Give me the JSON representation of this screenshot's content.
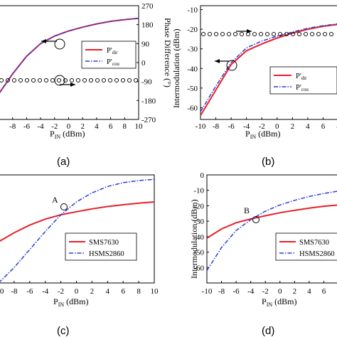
{
  "captions": [
    "(a)",
    "(b)",
    "(c)",
    "(d)"
  ],
  "chart_data": [
    {
      "type": "line",
      "panel": "(a)",
      "xlabel": "P_IN (dBm)",
      "ylabel_right": "Phase Difference (°)",
      "xlim": [
        -10,
        10
      ],
      "x_ticks": [
        "-8",
        "-6",
        "-4",
        "-2",
        "0",
        "2",
        "4",
        "6",
        "8",
        "10"
      ],
      "y2lim": [
        -270,
        270
      ],
      "y2_ticks": [
        "270",
        "180",
        "90",
        "0",
        "-90",
        "-180",
        "-270"
      ],
      "legend": [
        "P'dir",
        "P'cou"
      ],
      "legend_position": "right",
      "grid": false,
      "series": [
        {
          "name": "P'dir",
          "color": "#e8202a",
          "style": "solid",
          "x": [
            -10,
            -8,
            -6,
            -4,
            -2,
            0,
            2,
            4,
            6,
            8,
            10
          ],
          "y": [
            -20,
            -12,
            -5,
            0,
            3,
            5,
            6.5,
            7.8,
            8.8,
            9.5,
            10
          ]
        },
        {
          "name": "P'cou",
          "color": "#2a3fd8",
          "style": "dashdot",
          "x": [
            -10,
            -8,
            -6,
            -4,
            -2,
            0,
            2,
            4,
            6,
            8,
            10
          ],
          "y": [
            -20,
            -12,
            -5,
            0,
            3,
            5,
            6.5,
            7.8,
            8.8,
            9.5,
            10
          ]
        },
        {
          "name": "Phase difference",
          "axis": "right",
          "style": "circles",
          "x": [
            -10,
            -8,
            -6,
            -4,
            -2,
            0,
            2,
            4,
            6,
            8,
            10
          ],
          "y": [
            -5,
            -5,
            -5,
            -5,
            -5,
            -5,
            -5,
            -5,
            -5,
            -5,
            -5
          ]
        }
      ]
    },
    {
      "type": "line",
      "panel": "(b)",
      "xlabel": "P_IN (dBm)",
      "ylabel": "Intermodulation (dBm)",
      "xlim": [
        -10,
        8
      ],
      "x_ticks": [
        "-10",
        "-8",
        "-6",
        "-4",
        "-2",
        "0",
        "2",
        "4",
        "6",
        "8"
      ],
      "y_ticks": [
        "-10",
        "-20",
        "-30",
        "-40",
        "-50",
        "-60"
      ],
      "ylim": [
        -66,
        -8
      ],
      "legend": [
        "P'dir",
        "P'cou"
      ],
      "legend_position": "lower right",
      "grid": false,
      "series": [
        {
          "name": "P'dir",
          "color": "#e8202a",
          "style": "solid",
          "x": [
            -10,
            -8,
            -6,
            -4,
            -2,
            0,
            2,
            4,
            6,
            8
          ],
          "y": [
            -64,
            -51,
            -38,
            -31,
            -27.5,
            -24.5,
            -22,
            -20,
            -18.5,
            -17.5
          ]
        },
        {
          "name": "P'cou",
          "color": "#2a3fd8",
          "style": "dashdot",
          "x": [
            -10,
            -8,
            -6,
            -4,
            -2,
            0,
            2,
            4,
            6,
            8
          ],
          "y": [
            -62,
            -49,
            -37,
            -29.5,
            -26,
            -23.5,
            -21.5,
            -19.5,
            -18.2,
            -17.2
          ]
        },
        {
          "name": "Phase difference",
          "axis": "right",
          "style": "circles",
          "x": [
            -10,
            -8,
            -6,
            -4,
            -2,
            0,
            2,
            4,
            6,
            8
          ],
          "y": [
            -18,
            -18,
            -18,
            -18,
            -18,
            -18,
            -18,
            -18,
            -18,
            -18
          ]
        }
      ]
    },
    {
      "type": "line",
      "panel": "(c)",
      "xlabel": "P_IN (dBm)",
      "xlim": [
        -10,
        10
      ],
      "x_ticks": [
        "-10",
        "-8",
        "-6",
        "-4",
        "-2",
        "0",
        "2",
        "4",
        "6",
        "8",
        "10"
      ],
      "legend": [
        "SMS7630",
        "HSMS2860"
      ],
      "legend_position": "lower right",
      "annotation": "A",
      "grid": false,
      "series": [
        {
          "name": "SMS7630",
          "color": "#e8202a",
          "style": "solid",
          "x": [
            -10,
            -8,
            -6,
            -4,
            -2,
            0,
            2,
            4,
            6,
            8,
            10
          ],
          "y": [
            -40,
            -36.5,
            -33.5,
            -31.2,
            -29.5,
            -28.3,
            -27.2,
            -26.3,
            -25.6,
            -25,
            -24.5
          ]
        },
        {
          "name": "HSMS2860",
          "color": "#2a3fd8",
          "style": "dashdot",
          "x": [
            -10,
            -8,
            -6,
            -4,
            -2,
            0,
            2,
            4,
            6,
            8,
            10
          ],
          "y": [
            -56,
            -50,
            -43,
            -36,
            -29.5,
            -24.5,
            -21,
            -18.5,
            -17,
            -16.2,
            -15.7
          ]
        }
      ]
    },
    {
      "type": "line",
      "panel": "(d)",
      "xlabel": "P_IN (dBm)",
      "ylabel": "Intermodulation (dBm)",
      "xlim": [
        -10,
        8
      ],
      "ylim": [
        -70,
        0
      ],
      "x_ticks": [
        "-10",
        "-8",
        "-6",
        "-4",
        "-2",
        "0",
        "2",
        "4",
        "6"
      ],
      "y_ticks": [
        "0",
        "-10",
        "-20",
        "-30",
        "-40",
        "-50",
        "-60"
      ],
      "legend": [
        "SMS7630",
        "HSMS2860"
      ],
      "legend_position": "lower right",
      "annotation": "B",
      "grid": false,
      "series": [
        {
          "name": "SMS7630",
          "color": "#e8202a",
          "style": "solid",
          "x": [
            -10,
            -8,
            -6,
            -4,
            -2,
            0,
            2,
            4,
            6,
            8
          ],
          "y": [
            -41,
            -35,
            -31,
            -28.5,
            -26.5,
            -24.5,
            -23,
            -21.5,
            -20.3,
            -19.5
          ]
        },
        {
          "name": "HSMS2860",
          "color": "#2a3fd8",
          "style": "dashdot",
          "x": [
            -10,
            -8,
            -6,
            -4,
            -2,
            0,
            2,
            4,
            6,
            8
          ],
          "y": [
            -62,
            -47,
            -36,
            -29,
            -23.5,
            -19.5,
            -16.5,
            -14,
            -12,
            -10.5
          ]
        }
      ]
    }
  ]
}
